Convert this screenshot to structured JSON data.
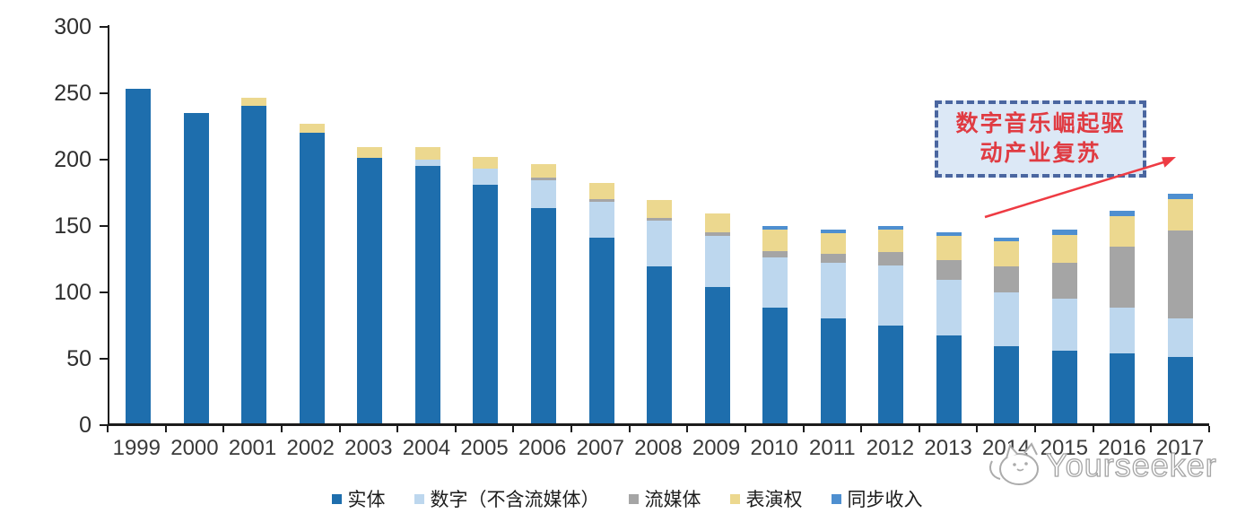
{
  "chart_data": {
    "type": "bar",
    "stacked": true,
    "title": "",
    "xlabel": "",
    "ylabel": "",
    "categories": [
      "1999",
      "2000",
      "2001",
      "2002",
      "2003",
      "2004",
      "2005",
      "2006",
      "2007",
      "2008",
      "2009",
      "2010",
      "2011",
      "2012",
      "2013",
      "2014",
      "2015",
      "2016",
      "2017"
    ],
    "series": [
      {
        "key": "physical",
        "name": "实体",
        "color": "#1e6ead",
        "values": [
          252,
          234,
          239,
          219,
          200,
          194,
          180,
          162,
          140,
          118,
          103,
          87,
          79,
          74,
          66,
          58,
          55,
          53,
          50
        ]
      },
      {
        "key": "digital_excl_streaming",
        "name": "数字（不含流媒体）",
        "color": "#bdd7ee",
        "values": [
          0,
          0,
          0,
          0,
          0,
          5,
          12,
          21,
          27,
          35,
          38,
          38,
          42,
          45,
          42,
          41,
          39,
          34,
          29
        ]
      },
      {
        "key": "streaming",
        "name": "流媒体",
        "color": "#a5a5a5",
        "values": [
          0,
          0,
          0,
          0,
          0,
          0,
          0,
          2,
          2,
          2,
          3,
          5,
          7,
          10,
          15,
          19,
          27,
          46,
          66
        ]
      },
      {
        "key": "performance_rights",
        "name": "表演权",
        "color": "#ecd88f",
        "values": [
          0,
          0,
          6,
          7,
          8,
          9,
          9,
          10,
          12,
          13,
          14,
          16,
          15,
          17,
          18,
          19,
          21,
          23,
          24
        ]
      },
      {
        "key": "sync_revenue",
        "name": "同步收入",
        "color": "#4e8fd0",
        "values": [
          0,
          0,
          0,
          0,
          0,
          0,
          0,
          0,
          0,
          0,
          0,
          3,
          3,
          3,
          3,
          3,
          4,
          4,
          4
        ]
      }
    ],
    "ylim": [
      0,
      300
    ],
    "yticks": [
      0,
      50,
      100,
      150,
      200,
      250,
      300
    ],
    "grid": false,
    "legend_position": "bottom"
  },
  "annotation": {
    "text": "数字音乐崛起驱动产业复苏",
    "line1": "数字音乐崛起驱",
    "line2": "动产业复苏"
  },
  "watermark": {
    "text": "Yourseeker"
  },
  "colors": {
    "axis": "#1c1c1c",
    "annotation_border": "#4a66a0",
    "annotation_fill": "#dce8f6",
    "annotation_text": "#e03b42",
    "arrow": "#ee3b43",
    "watermark_outline": "#a6a6a6"
  }
}
